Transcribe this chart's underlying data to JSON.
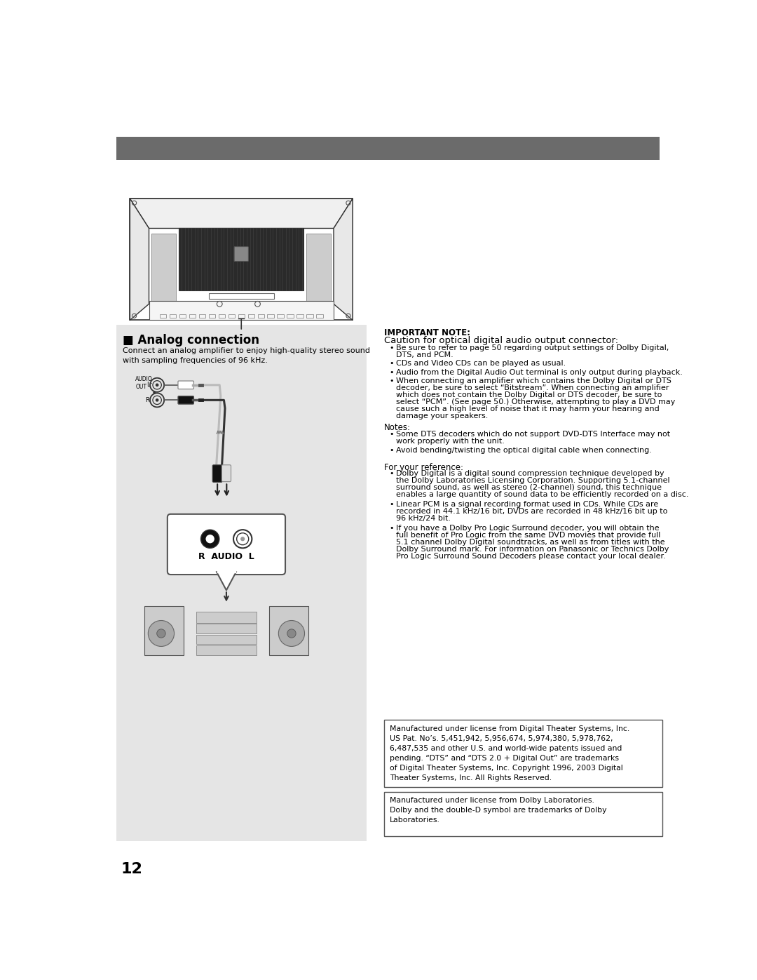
{
  "bg_color": "#ffffff",
  "header_color": "#6b6b6b",
  "section_bg": "#e5e5e5",
  "page_number": "12",
  "analog_title": "■ Analog connection",
  "analog_desc": "Connect an analog amplifier to enjoy high-quality stereo sound\nwith sampling frequencies of 96 kHz.",
  "important_note_title": "IMPORTANT NOTE:",
  "important_note_subtitle": "Caution for optical digital audio output connector:",
  "important_notes": [
    "Be sure to refer to page 50 regarding output settings of Dolby Digital,\nDTS, and PCM.",
    "CDs and Video CDs can be played as usual.",
    "Audio from the Digital Audio Out terminal is only output during playback.",
    "When connecting an amplifier which contains the Dolby Digital or DTS\ndecoder, be sure to select “Bitstream”. When connecting an amplifier\nwhich does not contain the Dolby Digital or DTS decoder, be sure to\nselect “PCM”. (See page 50.) Otherwise, attempting to play a DVD may\ncause such a high level of noise that it may harm your hearing and\ndamage your speakers."
  ],
  "notes_title": "Notes:",
  "notes": [
    "Some DTS decoders which do not support DVD-DTS Interface may not\nwork properly with the unit.",
    "Avoid bending/twisting the optical digital cable when connecting."
  ],
  "ref_title": "For your reference:",
  "ref_items": [
    "Dolby Digital is a digital sound compression technique developed by\nthe Dolby Laboratories Licensing Corporation. Supporting 5.1-channel\nsurround sound, as well as stereo (2-channel) sound, this technique\nenables a large quantity of sound data to be efficiently recorded on a disc.",
    "Linear PCM is a signal recording format used in CDs. While CDs are\nrecorded in 44.1 kHz/16 bit, DVDs are recorded in 48 kHz/16 bit up to\n96 kHz/24 bit.",
    "If you have a Dolby Pro Logic Surround decoder, you will obtain the\nfull benefit of Pro Logic from the same DVD movies that provide full\n5.1 channel Dolby Digital soundtracks, as well as from titles with the\nDolby Surround mark. For information on Panasonic or Technics Dolby\nPro Logic Surround Sound Decoders please contact your local dealer."
  ],
  "dts_box": "Manufactured under license from Digital Theater Systems, Inc.\nUS Pat. No’s. 5,451,942, 5,956,674, 5,974,380, 5,978,762,\n6,487,535 and other U.S. and world-wide patents issued and\npending. “DTS” and “DTS 2.0 + Digital Out” are trademarks\nof Digital Theater Systems, Inc. Copyright 1996, 2003 Digital\nTheater Systems, Inc. All Rights Reserved.",
  "dolby_box": "Manufactured under license from Dolby Laboratories.\nDolby and the double-D symbol are trademarks of Dolby\nLaboratories."
}
